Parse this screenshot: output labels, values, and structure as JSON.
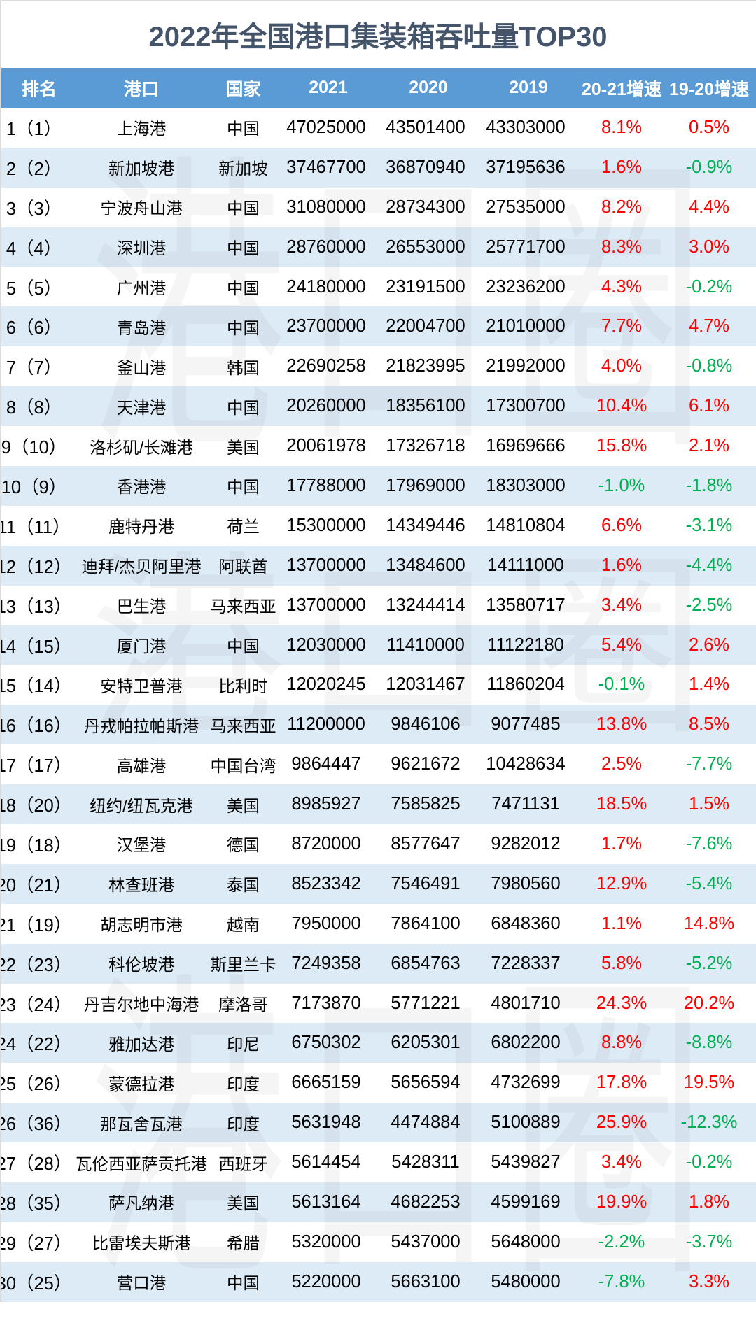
{
  "watermark": "港口圈",
  "colors": {
    "title": "#44546a",
    "header_bg": "#5b9bd5",
    "header_text": "#ffffff",
    "row_alt_bg": "#ddebf7",
    "growth_up": "#ff0000",
    "growth_down": "#00b050"
  },
  "table": {
    "growth_trend": [
      [
        "up",
        "up"
      ],
      [
        "up",
        "down"
      ],
      [
        "up",
        "up"
      ],
      [
        "up",
        "up"
      ],
      [
        "up",
        "down"
      ],
      [
        "up",
        "up"
      ],
      [
        "up",
        "down"
      ],
      [
        "up",
        "up"
      ],
      [
        "up",
        "up"
      ],
      [
        "down",
        "down"
      ],
      [
        "up",
        "down"
      ],
      [
        "up",
        "down"
      ],
      [
        "up",
        "down"
      ],
      [
        "up",
        "up"
      ],
      [
        "down",
        "up"
      ],
      [
        "up",
        "up"
      ],
      [
        "up",
        "down"
      ],
      [
        "up",
        "up"
      ],
      [
        "up",
        "down"
      ],
      [
        "up",
        "down"
      ],
      [
        "up",
        "up"
      ],
      [
        "up",
        "down"
      ],
      [
        "up",
        "up"
      ],
      [
        "up",
        "down"
      ],
      [
        "up",
        "up"
      ],
      [
        "up",
        "down"
      ],
      [
        "up",
        "down"
      ],
      [
        "up",
        "up"
      ],
      [
        "down",
        "down"
      ],
      [
        "down",
        "up"
      ]
    ]
  },
  "chart_data": {
    "type": "table",
    "title": "2022年全国港口集装箱吞吐量TOP30",
    "columns": [
      "排名",
      "港口",
      "国家",
      "2021",
      "2020",
      "2019",
      "20-21增速",
      "19-20增速"
    ],
    "rows": [
      [
        "1（1）",
        "上海港",
        "中国",
        47025000,
        43501400,
        43303000,
        "8.1%",
        "0.5%"
      ],
      [
        "2（2）",
        "新加坡港",
        "新加坡",
        37467700,
        36870940,
        37195636,
        "1.6%",
        "-0.9%"
      ],
      [
        "3（3）",
        "宁波舟山港",
        "中国",
        31080000,
        28734300,
        27535000,
        "8.2%",
        "4.4%"
      ],
      [
        "4（4）",
        "深圳港",
        "中国",
        28760000,
        26553000,
        25771700,
        "8.3%",
        "3.0%"
      ],
      [
        "5（5）",
        "广州港",
        "中国",
        24180000,
        23191500,
        23236200,
        "4.3%",
        "-0.2%"
      ],
      [
        "6（6）",
        "青岛港",
        "中国",
        23700000,
        22004700,
        21010000,
        "7.7%",
        "4.7%"
      ],
      [
        "7（7）",
        "釜山港",
        "韩国",
        22690258,
        21823995,
        21992000,
        "4.0%",
        "-0.8%"
      ],
      [
        "8（8）",
        "天津港",
        "中国",
        20260000,
        18356100,
        17300700,
        "10.4%",
        "6.1%"
      ],
      [
        "9（10）",
        "洛杉矶/长滩港",
        "美国",
        20061978,
        17326718,
        16969666,
        "15.8%",
        "2.1%"
      ],
      [
        "10（9）",
        "香港港",
        "中国",
        17788000,
        17969000,
        18303000,
        "-1.0%",
        "-1.8%"
      ],
      [
        "11（11）",
        "鹿特丹港",
        "荷兰",
        15300000,
        14349446,
        14810804,
        "6.6%",
        "-3.1%"
      ],
      [
        "12（12）",
        "迪拜/杰贝阿里港",
        "阿联酋",
        13700000,
        13484600,
        14111000,
        "1.6%",
        "-4.4%"
      ],
      [
        "13（13）",
        "巴生港",
        "马来西亚",
        13700000,
        13244414,
        13580717,
        "3.4%",
        "-2.5%"
      ],
      [
        "14（15）",
        "厦门港",
        "中国",
        12030000,
        11410000,
        11122180,
        "5.4%",
        "2.6%"
      ],
      [
        "15（14）",
        "安特卫普港",
        "比利时",
        12020245,
        12031467,
        11860204,
        "-0.1%",
        "1.4%"
      ],
      [
        "16（16）",
        "丹戎帕拉帕斯港",
        "马来西亚",
        11200000,
        9846106,
        9077485,
        "13.8%",
        "8.5%"
      ],
      [
        "17（17）",
        "高雄港",
        "中国台湾",
        9864447,
        9621672,
        10428634,
        "2.5%",
        "-7.7%"
      ],
      [
        "18（20）",
        "纽约/纽瓦克港",
        "美国",
        8985927,
        7585825,
        7471131,
        "18.5%",
        "1.5%"
      ],
      [
        "19（18）",
        "汉堡港",
        "德国",
        8720000,
        8577647,
        9282012,
        "1.7%",
        "-7.6%"
      ],
      [
        "20（21）",
        "林查班港",
        "泰国",
        8523342,
        7546491,
        7980560,
        "12.9%",
        "-5.4%"
      ],
      [
        "21（19）",
        "胡志明市港",
        "越南",
        7950000,
        7864100,
        6848360,
        "1.1%",
        "14.8%"
      ],
      [
        "22（23）",
        "科伦坡港",
        "斯里兰卡",
        7249358,
        6854763,
        7228337,
        "5.8%",
        "-5.2%"
      ],
      [
        "23（24）",
        "丹吉尔地中海港",
        "摩洛哥",
        7173870,
        5771221,
        4801710,
        "24.3%",
        "20.2%"
      ],
      [
        "24（22）",
        "雅加达港",
        "印尼",
        6750302,
        6205301,
        6802200,
        "8.8%",
        "-8.8%"
      ],
      [
        "25（26）",
        "蒙德拉港",
        "印度",
        6665159,
        5656594,
        4732699,
        "17.8%",
        "19.5%"
      ],
      [
        "26（36）",
        "那瓦舍瓦港",
        "印度",
        5631948,
        4474884,
        5100889,
        "25.9%",
        "-12.3%"
      ],
      [
        "27（28）",
        "瓦伦西亚萨贡托港",
        "西班牙",
        5614454,
        5428311,
        5439827,
        "3.4%",
        "-0.2%"
      ],
      [
        "28（35）",
        "萨凡纳港",
        "美国",
        5613164,
        4682253,
        4599169,
        "19.9%",
        "1.8%"
      ],
      [
        "29（27）",
        "比雷埃夫斯港",
        "希腊",
        5320000,
        5437000,
        5648000,
        "-2.2%",
        "-3.7%"
      ],
      [
        "30（25）",
        "营口港",
        "中国",
        5220000,
        5663100,
        5480000,
        "-7.8%",
        "3.3%"
      ]
    ]
  }
}
